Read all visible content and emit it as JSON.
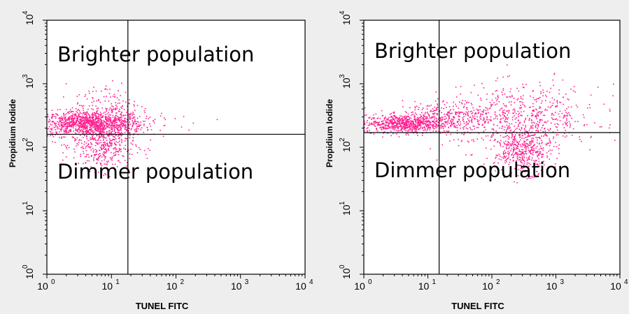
{
  "figure": {
    "background": "#eeeeee",
    "plot_background": "#ffffff",
    "dot_color": "#ff1f8f"
  },
  "chart_data": [
    {
      "type": "scatter",
      "xlabel": "TUNEL FITC",
      "ylabel": "Propidium Iodide",
      "xscale": "log",
      "yscale": "log",
      "xlim": [
        1,
        10000
      ],
      "ylim": [
        1,
        10000
      ],
      "x_ticks": [
        {
          "value": 1,
          "base": "10",
          "exp": "0"
        },
        {
          "value": 10,
          "base": "10",
          "exp": "1"
        },
        {
          "value": 100,
          "base": "10",
          "exp": "2"
        },
        {
          "value": 1000,
          "base": "10",
          "exp": "3"
        },
        {
          "value": 10000,
          "base": "10",
          "exp": "4"
        }
      ],
      "y_ticks": [
        {
          "value": 1,
          "base": "10",
          "exp": "0"
        },
        {
          "value": 10,
          "base": "10",
          "exp": "1"
        },
        {
          "value": 100,
          "base": "10",
          "exp": "2"
        },
        {
          "value": 1000,
          "base": "10",
          "exp": "3"
        },
        {
          "value": 10000,
          "base": "10",
          "exp": "4"
        }
      ],
      "gates": {
        "x": 18,
        "y": 160
      },
      "annotations": [
        {
          "text": "Brighter population",
          "region": "upper"
        },
        {
          "text": "Dimmer population",
          "region": "lower"
        }
      ],
      "clusters": [
        {
          "center": [
            4.5,
            240
          ],
          "spread": [
            0.42,
            0.1
          ],
          "count": 1200
        },
        {
          "center": [
            7.5,
            110
          ],
          "spread": [
            0.24,
            0.2
          ],
          "count": 420
        },
        {
          "center": [
            8.0,
            520
          ],
          "spread": [
            0.25,
            0.16
          ],
          "count": 110
        },
        {
          "center": [
            60,
            260
          ],
          "spread": [
            0.5,
            0.12
          ],
          "count": 14
        }
      ]
    },
    {
      "type": "scatter",
      "xlabel": "TUNEL FITC",
      "ylabel": "Propidium Iodide",
      "xscale": "log",
      "yscale": "log",
      "xlim": [
        1,
        10000
      ],
      "ylim": [
        1,
        10000
      ],
      "x_ticks": [
        {
          "value": 1,
          "base": "10",
          "exp": "0"
        },
        {
          "value": 10,
          "base": "10",
          "exp": "1"
        },
        {
          "value": 100,
          "base": "10",
          "exp": "2"
        },
        {
          "value": 1000,
          "base": "10",
          "exp": "3"
        },
        {
          "value": 10000,
          "base": "10",
          "exp": "4"
        }
      ],
      "y_ticks": [
        {
          "value": 1,
          "base": "10",
          "exp": "0"
        },
        {
          "value": 10,
          "base": "10",
          "exp": "1"
        },
        {
          "value": 100,
          "base": "10",
          "exp": "2"
        },
        {
          "value": 1000,
          "base": "10",
          "exp": "3"
        },
        {
          "value": 10000,
          "base": "10",
          "exp": "4"
        }
      ],
      "gates": {
        "x": 15,
        "y": 170
      },
      "annotations": [
        {
          "text": "Brighter population",
          "region": "upper"
        },
        {
          "text": "Dimmer population",
          "region": "lower"
        }
      ],
      "clusters": [
        {
          "center": [
            4.0,
            240
          ],
          "spread": [
            0.3,
            0.07
          ],
          "count": 650
        },
        {
          "center": [
            20,
            300
          ],
          "spread": [
            0.35,
            0.12
          ],
          "count": 350
        },
        {
          "center": [
            300,
            300
          ],
          "spread": [
            0.6,
            0.25
          ],
          "count": 600
        },
        {
          "center": [
            300,
            90
          ],
          "spread": [
            0.22,
            0.18
          ],
          "count": 450
        }
      ]
    }
  ]
}
